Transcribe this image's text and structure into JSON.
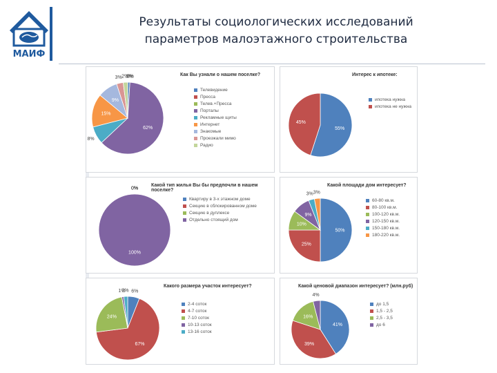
{
  "header": {
    "title_line1": "Результаты социологических исследований",
    "title_line2": "параметров малоэтажного строительства",
    "logo_text": "МАИФ"
  },
  "colors": {
    "blue": "#4f81bd",
    "red": "#c0504d",
    "green": "#9bbb59",
    "purple": "#8064a2",
    "teal": "#4bacc6",
    "orange": "#f79646",
    "lightblue": "#a5b8de",
    "pink": "#d99694",
    "lightgreen": "#c3d69b",
    "brand": "#1f5a9e"
  },
  "chart_data": [
    {
      "type": "pie",
      "title": "Как Вы узнали о нашем поселке?",
      "categories": [
        "Телевидение",
        "Пресса",
        "Телев.+Пресса",
        "Порталы",
        "Рекламные щиты",
        "Интернет",
        "Знакомые",
        "Проезжали мимо",
        "Радио"
      ],
      "values": [
        1,
        0,
        0,
        62,
        8,
        15,
        9,
        3,
        2
      ],
      "labels": [
        "1%",
        "0%",
        "0%",
        "62%",
        "8%",
        "15%",
        "9%",
        "3%",
        "2%"
      ],
      "colors": [
        "#4f81bd",
        "#c0504d",
        "#9bbb59",
        "#8064a2",
        "#4bacc6",
        "#f79646",
        "#a5b8de",
        "#d99694",
        "#c3d69b"
      ]
    },
    {
      "type": "pie",
      "title": "Интерес к ипотеке:",
      "categories": [
        "ипотека нужна",
        "ипотека не нужна"
      ],
      "values": [
        55,
        45
      ],
      "labels": [
        "55%",
        "45%"
      ],
      "colors": [
        "#4f81bd",
        "#c0504d"
      ]
    },
    {
      "type": "pie",
      "title": "Какой тип жилья Вы бы предпочли в нашем поселке?",
      "categories": [
        "Квартиру в 3-х этажном доме",
        "Секцию в сблокированном доме",
        "Секцию в дуплексе",
        "Отдельно стоящий дом"
      ],
      "values": [
        0,
        0,
        0,
        100
      ],
      "labels": [
        "0%",
        "0%",
        "0%",
        "100%"
      ],
      "colors": [
        "#4f81bd",
        "#c0504d",
        "#9bbb59",
        "#8064a2"
      ]
    },
    {
      "type": "pie",
      "title": "Какой площади дом интересует?",
      "categories": [
        "60-80 кв.м.",
        "80-100 кв.м.",
        "100-120 кв.м.",
        "120-150 кв.м.",
        "150-180 кв.м.",
        "180-220 кв.м."
      ],
      "values": [
        50,
        25,
        10,
        9,
        3,
        3
      ],
      "labels": [
        "50%",
        "25%",
        "10%",
        "9%",
        "3%",
        "3%"
      ],
      "colors": [
        "#4f81bd",
        "#c0504d",
        "#9bbb59",
        "#8064a2",
        "#4bacc6",
        "#f79646"
      ]
    },
    {
      "type": "pie",
      "title": "Какого размера участок интересует?",
      "categories": [
        "2-4 соток",
        "4-7 соток",
        "7-10 соток",
        "10-13 соток",
        "13-16 соток"
      ],
      "values": [
        6,
        67,
        24,
        1,
        2
      ],
      "labels": [
        "6%",
        "67%",
        "24%",
        "1%",
        "2%"
      ],
      "colors": [
        "#4f81bd",
        "#c0504d",
        "#9bbb59",
        "#8064a2",
        "#4bacc6"
      ]
    },
    {
      "type": "pie",
      "title": "Какой ценовой диапазон интересует? (млн.руб)",
      "categories": [
        "до 1,5",
        "1,5 - 2,5",
        "2,5 - 3,5",
        "до 6"
      ],
      "values": [
        41,
        39,
        16,
        4
      ],
      "labels": [
        "41%",
        "39%",
        "16%",
        "4%"
      ],
      "colors": [
        "#4f81bd",
        "#c0504d",
        "#9bbb59",
        "#8064a2"
      ]
    }
  ]
}
